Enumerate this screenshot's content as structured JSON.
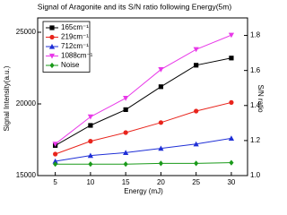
{
  "chart_data": {
    "type": "line",
    "title": "Signal of Aragonite and its S/N ratio following Energy(5m)",
    "x_label": "Energy (mJ)",
    "y_label": "Signal Intensity(a.u.)",
    "y2_label": "S/N ratio",
    "x": [
      5,
      10,
      15,
      20,
      25,
      30
    ],
    "xlim": [
      2.5,
      32.3
    ],
    "xticks": [
      5,
      10,
      15,
      20,
      25,
      30
    ],
    "ylim": [
      15000,
      26000
    ],
    "yticks": [
      15000,
      20000,
      25000
    ],
    "y2lim": [
      1.0,
      1.9
    ],
    "y2ticks": [
      {
        "value": 1.0,
        "label": "1.0"
      },
      1.2,
      1.4,
      1.6,
      1.8
    ],
    "legend": "upper left",
    "series": [
      {
        "name": "165cm⁻¹",
        "color": "#000000",
        "marker": "square",
        "values": [
          17100,
          18500,
          19600,
          21200,
          22700,
          23200
        ]
      },
      {
        "name": "219cm⁻¹",
        "color": "#e8241c",
        "marker": "circle",
        "values": [
          16500,
          17400,
          18000,
          18700,
          19500,
          20100
        ]
      },
      {
        "name": "712cm⁻¹",
        "color": "#1f2fd6",
        "marker": "triangle-up",
        "values": [
          16000,
          16400,
          16600,
          16900,
          17200,
          17600
        ]
      },
      {
        "name": "1088cm⁻¹",
        "color": "#e838e8",
        "marker": "triangle-down",
        "values": [
          17200,
          19100,
          20400,
          22400,
          23800,
          24800
        ]
      },
      {
        "name": "Noise",
        "color": "#1a9a1a",
        "marker": "diamond",
        "values": [
          15800,
          15800,
          15800,
          15850,
          15850,
          15900
        ]
      }
    ]
  }
}
